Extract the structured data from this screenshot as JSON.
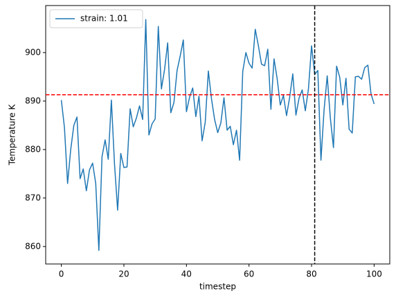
{
  "chart_data": {
    "type": "line",
    "xlabel": "timestep",
    "ylabel": "Temperature K",
    "x": [
      0,
      1,
      2,
      3,
      4,
      5,
      6,
      7,
      8,
      9,
      10,
      11,
      12,
      13,
      14,
      15,
      16,
      17,
      18,
      19,
      20,
      21,
      22,
      23,
      24,
      25,
      26,
      27,
      28,
      29,
      30,
      31,
      32,
      33,
      34,
      35,
      36,
      37,
      38,
      39,
      40,
      41,
      42,
      43,
      44,
      45,
      46,
      47,
      48,
      49,
      50,
      51,
      52,
      53,
      54,
      55,
      56,
      57,
      58,
      59,
      60,
      61,
      62,
      63,
      64,
      65,
      66,
      67,
      68,
      69,
      70,
      71,
      72,
      73,
      74,
      75,
      76,
      77,
      78,
      79,
      80,
      81,
      82,
      83,
      84,
      85,
      86,
      87,
      88,
      89,
      90,
      91,
      92,
      93,
      94,
      95,
      96,
      97,
      98,
      99,
      100
    ],
    "series": [
      {
        "name": "strain: 1.01",
        "color": "#1f77b4",
        "values": [
          890.2,
          884.5,
          873,
          880,
          885,
          886.7,
          874,
          876,
          871.5,
          875.8,
          877.2,
          873,
          859.2,
          878.5,
          882,
          878,
          890.2,
          877,
          867.5,
          879.2,
          876.3,
          876.4,
          888.4,
          884.7,
          886.5,
          889,
          886.2,
          906.8,
          883,
          885.3,
          886.3,
          905.4,
          892.5,
          896.5,
          902,
          887.6,
          889.7,
          896.3,
          899.3,
          902.6,
          887.8,
          890.8,
          892.7,
          886.8,
          891,
          881.8,
          885.6,
          896.2,
          890.5,
          886.2,
          883.5,
          885.5,
          890.7,
          884,
          884.8,
          881,
          884,
          877.8,
          896.1,
          900,
          897.8,
          896.8,
          904.8,
          901.4,
          897.6,
          897.3,
          900.7,
          888.3,
          898.7,
          894.6,
          889.2,
          891.2,
          887,
          890.8,
          895.6,
          887.1,
          890.6,
          892.3,
          888,
          892.5,
          901.4,
          895.5,
          896.3,
          877.8,
          888.2,
          895.2,
          886.5,
          880.4,
          897.2,
          894.9,
          889.2,
          894.7,
          884.2,
          883.4,
          895,
          895.1,
          894.5,
          896.9,
          897.4,
          891.5,
          889.4
        ]
      }
    ],
    "hline": {
      "value": 891.3,
      "color": "#ff0000"
    },
    "vline": {
      "value": 81,
      "color": "#000000"
    },
    "xlim": [
      -5,
      105
    ],
    "ylim": [
      856.4,
      909.7
    ],
    "xticks": [
      0,
      20,
      40,
      60,
      80,
      100
    ],
    "yticks": [
      860,
      870,
      880,
      890,
      900
    ],
    "legend": "upper left"
  }
}
